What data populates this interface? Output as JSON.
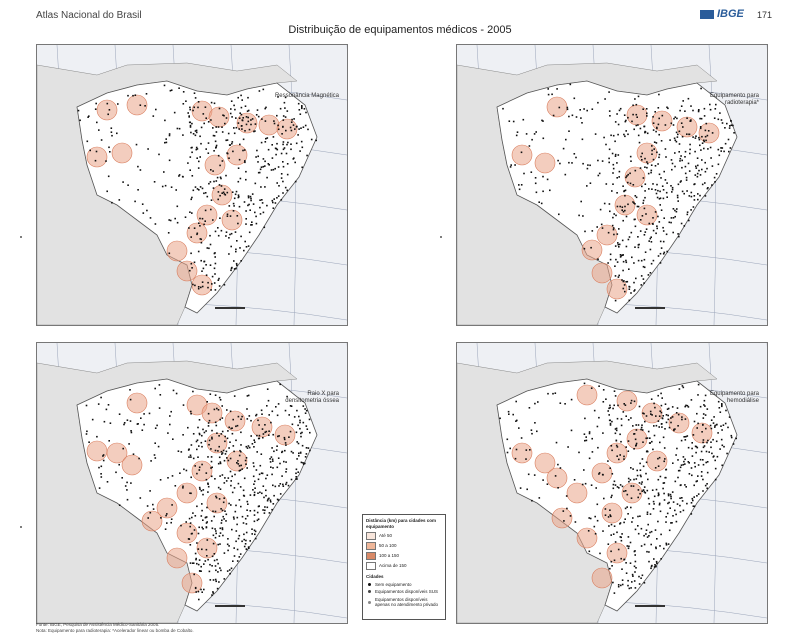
{
  "header": {
    "atlas_title": "Atlas Nacional do Brasil",
    "logo_text": "IBGE",
    "page_number": "171"
  },
  "title": "Distribuição de equipamentos médicos - 2005",
  "maps": [
    {
      "label_line1": "Ressonância Magnética",
      "label_line2": ""
    },
    {
      "label_line1": "Equipamento para",
      "label_line2": "radioterapia*"
    },
    {
      "label_line1": "Raio X para",
      "label_line2": "densitometria óssea"
    },
    {
      "label_line1": "Equipamento para",
      "label_line2": "hemodiálise"
    }
  ],
  "legend": {
    "title": "Distância (km) para cidades com equipamento",
    "classes": [
      "Até 50",
      "50 a 100",
      "100 a 150",
      "Acima de 150"
    ],
    "class_colors": [
      "#f8e6dc",
      "#efb79a",
      "#d98a68",
      "#ffffff"
    ],
    "cities_title": "Cidades",
    "cities": [
      "Sem equipamento",
      "Equipamentos disponíveis SUS",
      "Equipamentos disponíveis apenas no atendimento privado"
    ]
  },
  "footer": {
    "line1": "Fonte: IBGE, Pesquisa de Assistência Médico-Sanitária 2005.",
    "line2": "Nota: Equipamento para radioterapia: *Acelerador linear ou bomba de Cobalto."
  },
  "colors": {
    "ocean": "#eef0f4",
    "brazil_land": "#ffffff",
    "buffer": "#e9a488",
    "dots": "#111111",
    "logo": "#2a5c9a"
  }
}
